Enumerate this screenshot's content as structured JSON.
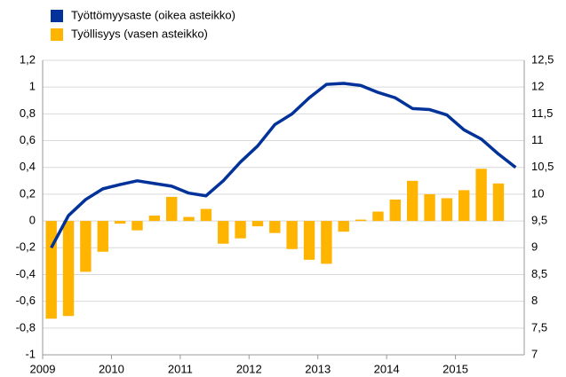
{
  "chart_data": {
    "type": "bar-line",
    "series": [
      {
        "name": "Työttömyysaste (oikea asteikko)",
        "color": "#003299",
        "type": "line",
        "axis": "y2",
        "x": [
          2009.125,
          2009.375,
          2009.625,
          2009.875,
          2010.125,
          2010.375,
          2010.625,
          2010.875,
          2011.125,
          2011.375,
          2011.625,
          2011.875,
          2012.125,
          2012.375,
          2012.625,
          2012.875,
          2013.125,
          2013.375,
          2013.625,
          2013.875,
          2014.125,
          2014.375,
          2014.625,
          2014.875,
          2015.125,
          2015.375,
          2015.625,
          2015.875
        ],
        "values": [
          9.0,
          9.6,
          9.9,
          10.1,
          10.18,
          10.25,
          10.2,
          10.15,
          10.02,
          9.97,
          10.25,
          10.6,
          10.9,
          11.3,
          11.5,
          11.8,
          12.05,
          12.07,
          12.03,
          11.9,
          11.8,
          11.6,
          11.58,
          11.48,
          11.2,
          11.03,
          10.75,
          10.5
        ]
      },
      {
        "name": "Työllisyys (vasen asteikko)",
        "color": "#ffb400",
        "type": "bar",
        "x": [
          2009.125,
          2009.375,
          2009.625,
          2009.875,
          2010.125,
          2010.375,
          2010.625,
          2010.875,
          2011.125,
          2011.375,
          2011.625,
          2011.875,
          2012.125,
          2012.375,
          2012.625,
          2012.875,
          2013.125,
          2013.375,
          2013.625,
          2013.875,
          2014.125,
          2014.375,
          2014.625,
          2014.875,
          2015.125,
          2015.375,
          2015.625
        ],
        "values": [
          -0.73,
          -0.71,
          -0.38,
          -0.23,
          -0.02,
          -0.07,
          0.04,
          0.18,
          0.03,
          0.09,
          -0.17,
          -0.13,
          -0.04,
          -0.09,
          -0.21,
          -0.29,
          -0.32,
          -0.08,
          0.01,
          0.07,
          0.16,
          0.3,
          0.2,
          0.17,
          0.23,
          0.39,
          0.28
        ]
      }
    ],
    "xlim": [
      2009,
      2016
    ],
    "xticks": [
      2009,
      2010,
      2011,
      2012,
      2013,
      2014,
      2015
    ],
    "ylim": [
      -1,
      1.2
    ],
    "yticks": [
      -1,
      {
        "value": -0.8,
        "label": "-0,8"
      },
      {
        "value": -0.6,
        "label": "-0,6"
      },
      {
        "value": -0.4,
        "label": "-0,4"
      },
      {
        "value": -0.2,
        "label": "-0,2"
      },
      0,
      {
        "value": 0.2,
        "label": "0,2"
      },
      {
        "value": 0.4,
        "label": "0,4"
      },
      {
        "value": 0.6,
        "label": "0,6"
      },
      {
        "value": 0.8,
        "label": "0,8"
      },
      1,
      {
        "value": 1.2,
        "label": "1,2"
      }
    ],
    "y2lim": [
      7,
      12.5
    ],
    "y2ticks": [
      7,
      {
        "value": 7.5,
        "label": "7,5"
      },
      8,
      {
        "value": 8.5,
        "label": "8,5"
      },
      9,
      {
        "value": 9.5,
        "label": "9,5"
      },
      10,
      {
        "value": 10.5,
        "label": "10,5"
      },
      11,
      {
        "value": 11.5,
        "label": "11,5"
      },
      12,
      {
        "value": 12.5,
        "label": "12,5"
      }
    ],
    "grid": true
  }
}
